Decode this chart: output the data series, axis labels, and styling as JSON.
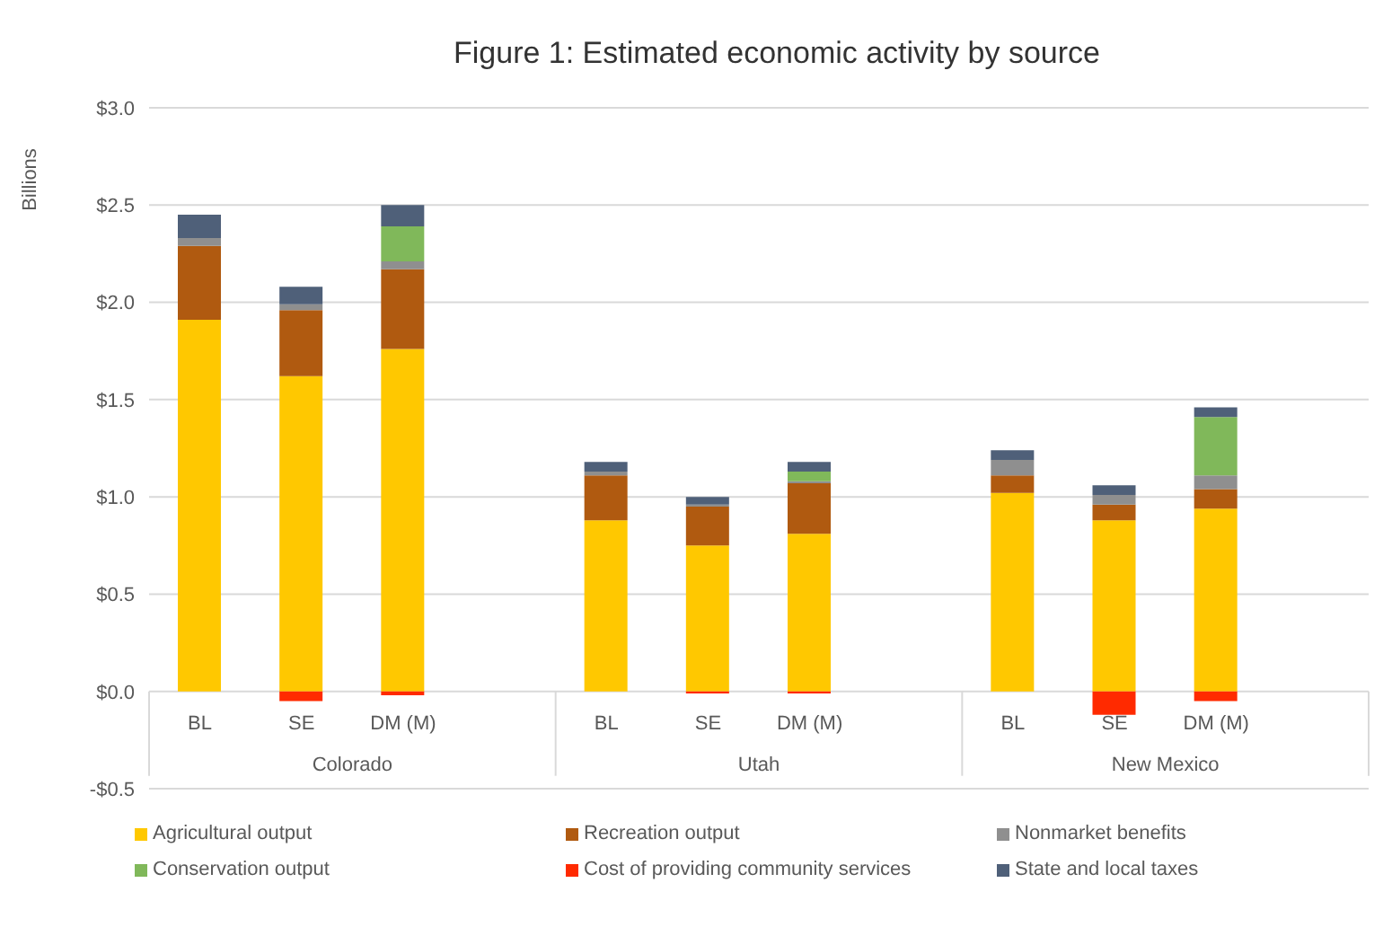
{
  "chart_data": {
    "type": "bar",
    "title": "Figure 1: Estimated economic activity by source",
    "ylabel": "Billions",
    "stacked": true,
    "grid": "y",
    "legend": "bottom",
    "categories": [
      "BL",
      "SE",
      "DM (M)",
      null,
      "BL",
      "SE",
      "DM (M)",
      null,
      "BL",
      "SE",
      "DM (M)",
      null
    ],
    "annotations": [
      "Colorado",
      "Utah",
      "New Mexico"
    ],
    "ylim": [
      -0.5,
      3
    ],
    "yticks": [
      {
        "value": -0.5,
        "label": "-$0.5"
      },
      {
        "value": 0,
        "label": "$0.0"
      },
      {
        "value": 0.5,
        "label": "$0.5"
      },
      {
        "value": 1,
        "label": "$1.0"
      },
      {
        "value": 1.5,
        "label": "$1.5"
      },
      {
        "value": 2,
        "label": "$2.0"
      },
      {
        "value": 2.5,
        "label": "$2.5"
      },
      {
        "value": 3,
        "label": "$3.0"
      }
    ],
    "series": [
      {
        "name": "Agricultural output",
        "color": "#ffc800",
        "values": [
          1.91,
          1.62,
          1.76,
          null,
          0.88,
          0.75,
          0.81,
          null,
          1.02,
          0.88,
          0.94,
          null
        ]
      },
      {
        "name": "Recreation output",
        "color": "#b05a10",
        "values": [
          0.38,
          0.34,
          0.41,
          null,
          0.23,
          0.2,
          0.26,
          null,
          0.09,
          0.08,
          0.1,
          null
        ]
      },
      {
        "name": "Nonmarket benefits",
        "color": "#8f8f8f",
        "values": [
          0.04,
          0.03,
          0.04,
          null,
          0.02,
          0.01,
          0.01,
          null,
          0.08,
          0.05,
          0.07,
          null
        ]
      },
      {
        "name": "Conservation output",
        "color": "#80b85a",
        "values": [
          0,
          0,
          0.18,
          null,
          0,
          0,
          0.05,
          null,
          0,
          0,
          0.3,
          null
        ]
      },
      {
        "name": "Cost of providing community services",
        "color": "#ff2a00",
        "values": [
          0,
          -0.05,
          -0.02,
          null,
          0,
          -0.01,
          -0.01,
          null,
          0,
          -0.12,
          -0.05,
          null
        ]
      },
      {
        "name": "State and local taxes",
        "color": "#4f6079",
        "values": [
          0.12,
          0.09,
          0.11,
          null,
          0.05,
          0.04,
          0.05,
          null,
          0.05,
          0.05,
          0.05,
          null
        ]
      }
    ]
  }
}
